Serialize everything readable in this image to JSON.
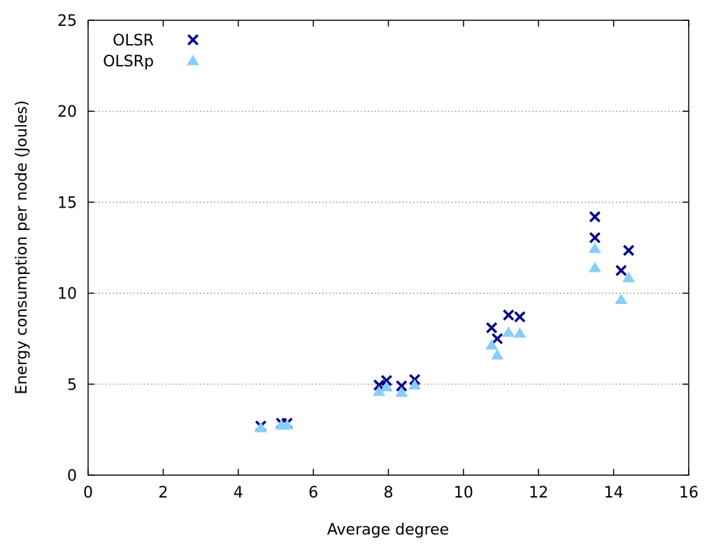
{
  "chart_data": {
    "type": "scatter",
    "title": "",
    "xlabel": "Average degree",
    "ylabel": "Energy consumption per node (Joules)",
    "xlim": [
      0,
      16
    ],
    "ylim": [
      0,
      25
    ],
    "xticks": [
      0,
      2,
      4,
      6,
      8,
      10,
      12,
      14,
      16
    ],
    "yticks": [
      0,
      5,
      10,
      15,
      20,
      25
    ],
    "grid": "horizontal dotted",
    "legend_position": "top-left",
    "series": [
      {
        "name": "OLSR",
        "marker": "x",
        "color": "#00008b",
        "points": [
          {
            "x": 4.6,
            "y": 2.7
          },
          {
            "x": 5.15,
            "y": 2.85
          },
          {
            "x": 5.3,
            "y": 2.85
          },
          {
            "x": 7.75,
            "y": 4.95
          },
          {
            "x": 7.95,
            "y": 5.2
          },
          {
            "x": 8.35,
            "y": 4.9
          },
          {
            "x": 8.7,
            "y": 5.25
          },
          {
            "x": 10.75,
            "y": 8.1
          },
          {
            "x": 10.9,
            "y": 7.5
          },
          {
            "x": 11.2,
            "y": 8.8
          },
          {
            "x": 11.5,
            "y": 8.7
          },
          {
            "x": 13.5,
            "y": 14.2
          },
          {
            "x": 13.5,
            "y": 13.05
          },
          {
            "x": 14.2,
            "y": 11.25
          },
          {
            "x": 14.4,
            "y": 12.35
          }
        ]
      },
      {
        "name": "OLSRp",
        "marker": "triangle",
        "color": "#87cefa",
        "points": [
          {
            "x": 4.6,
            "y": 2.6
          },
          {
            "x": 5.15,
            "y": 2.75
          },
          {
            "x": 5.3,
            "y": 2.75
          },
          {
            "x": 7.75,
            "y": 4.6
          },
          {
            "x": 7.95,
            "y": 4.85
          },
          {
            "x": 8.35,
            "y": 4.55
          },
          {
            "x": 8.7,
            "y": 4.95
          },
          {
            "x": 10.75,
            "y": 7.15
          },
          {
            "x": 10.9,
            "y": 6.6
          },
          {
            "x": 11.2,
            "y": 7.85
          },
          {
            "x": 11.5,
            "y": 7.8
          },
          {
            "x": 13.5,
            "y": 12.45
          },
          {
            "x": 13.5,
            "y": 11.4
          },
          {
            "x": 14.2,
            "y": 9.65
          },
          {
            "x": 14.4,
            "y": 10.85
          }
        ]
      }
    ]
  }
}
